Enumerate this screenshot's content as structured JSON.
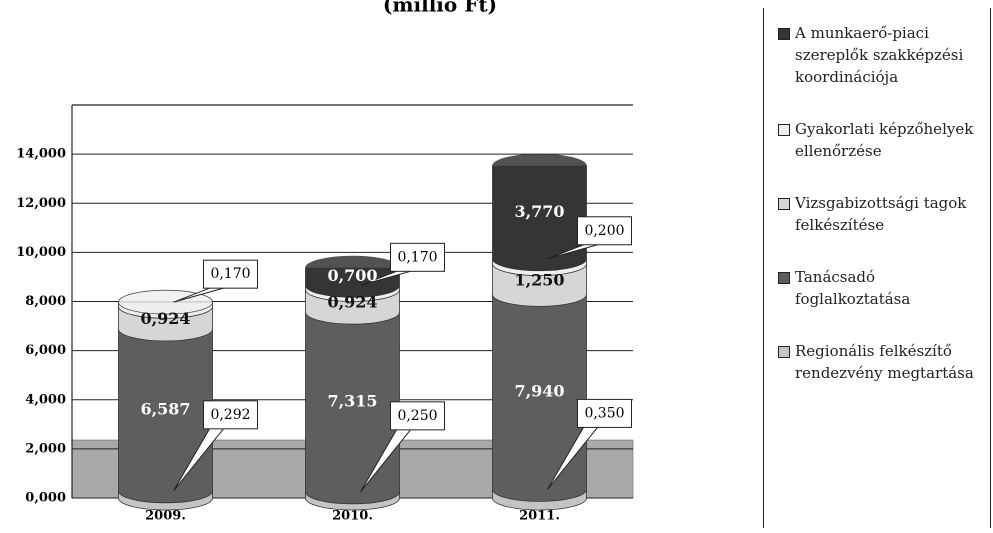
{
  "chart_data": {
    "type": "stacked-cylinder",
    "title": "(millió Ft)",
    "categories": [
      "2009.",
      "2010.",
      "2011."
    ],
    "series": [
      {
        "name": "Regionális felkészítő rendezvény megtartása",
        "color": "#c4c4c4",
        "values": [
          0.292,
          0.25,
          0.35
        ],
        "value_labels": [
          "0,292",
          "0,250",
          "0,350"
        ]
      },
      {
        "name": "Tanácsadó foglalkoztatása",
        "color": "#5e5e5e",
        "values": [
          6.587,
          7.315,
          7.94
        ],
        "value_labels": [
          "6,587",
          "7,315",
          "7,940"
        ]
      },
      {
        "name": "Vizsgabizottsági tagok felkészítése",
        "color": "#d6d6d6",
        "values": [
          0.924,
          0.924,
          1.25
        ],
        "value_labels": [
          "0,924",
          "0,924",
          "1,250"
        ]
      },
      {
        "name": "Gyakorlati képzőhelyek ellenőrzése",
        "color": "#efefef",
        "values": [
          0.17,
          0.17,
          0.2
        ],
        "value_labels": [
          "0,170",
          "0,170",
          "0,200"
        ]
      },
      {
        "name": "A munkaerő-piaci szereplők szakképzési koordinációja",
        "color": "#353535",
        "values": [
          null,
          0.7,
          3.77
        ],
        "value_labels": [
          null,
          "0,700",
          "3,770"
        ]
      }
    ],
    "ylim": [
      0,
      16
    ],
    "yticks": [
      {
        "value": 0,
        "label": "0,000"
      },
      {
        "value": 2,
        "label": "2,000"
      },
      {
        "value": 4,
        "label": "4,000"
      },
      {
        "value": 6,
        "label": "6,000"
      },
      {
        "value": 8,
        "label": "8,000"
      },
      {
        "value": 10,
        "label": "10,000"
      },
      {
        "value": 12,
        "label": "12,000"
      },
      {
        "value": 14,
        "label": "14,000"
      }
    ],
    "grid": true
  }
}
